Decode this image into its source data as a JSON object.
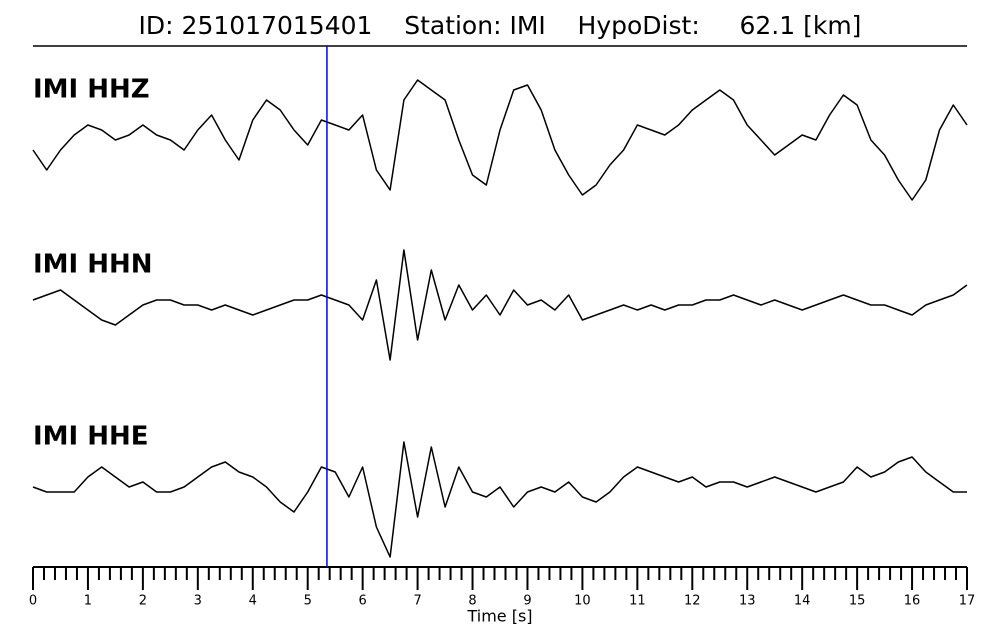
{
  "chart_data": {
    "type": "line",
    "title": "ID: 251017015401    Station: IMI    HypoDist:     62.1 [km]",
    "xlabel": "Time [s]",
    "x": [
      0,
      0.25,
      0.5,
      0.75,
      1,
      1.25,
      1.5,
      1.75,
      2,
      2.25,
      2.5,
      2.75,
      3,
      3.25,
      3.5,
      3.75,
      4,
      4.25,
      4.5,
      4.75,
      5,
      5.25,
      5.5,
      5.75,
      6,
      6.25,
      6.5,
      6.75,
      7,
      7.25,
      7.5,
      7.75,
      8,
      8.25,
      8.5,
      8.75,
      9,
      9.25,
      9.5,
      9.75,
      10,
      10.25,
      10.5,
      10.75,
      11,
      11.25,
      11.5,
      11.75,
      12,
      12.25,
      12.5,
      12.75,
      13,
      13.25,
      13.5,
      13.75,
      14,
      14.25,
      14.5,
      14.75,
      15,
      15.25,
      15.5,
      15.75,
      16,
      16.25,
      16.5,
      16.75,
      17
    ],
    "xlim": [
      0,
      17
    ],
    "xticks": [
      0,
      1,
      2,
      3,
      4,
      5,
      6,
      7,
      8,
      9,
      10,
      11,
      12,
      13,
      14,
      15,
      16,
      17
    ],
    "minor_ticks_per_major": 5,
    "ylim": [
      -80,
      80
    ],
    "label_color": "#4a9a00",
    "marker": {
      "x": 5.35,
      "color": "#0000ff"
    },
    "series": [
      {
        "name": "IMI HHZ",
        "color": "#000000",
        "values": [
          -10,
          -30,
          -10,
          5,
          15,
          10,
          0,
          5,
          15,
          5,
          0,
          -10,
          10,
          25,
          0,
          -20,
          20,
          40,
          30,
          10,
          -5,
          20,
          15,
          10,
          25,
          -30,
          -50,
          40,
          60,
          50,
          40,
          0,
          -35,
          -45,
          10,
          50,
          55,
          30,
          -10,
          -35,
          -55,
          -45,
          -25,
          -10,
          15,
          10,
          5,
          15,
          30,
          40,
          50,
          40,
          15,
          0,
          -15,
          -5,
          5,
          0,
          25,
          45,
          35,
          0,
          -15,
          -40,
          -60,
          -40,
          10,
          35,
          15
        ]
      },
      {
        "name": "IMI HHN",
        "color": "#000000",
        "values": [
          0,
          5,
          10,
          0,
          -10,
          -20,
          -25,
          -15,
          -5,
          0,
          0,
          -5,
          -5,
          -10,
          -5,
          -10,
          -15,
          -10,
          -5,
          0,
          0,
          5,
          0,
          -5,
          -20,
          20,
          -60,
          50,
          -40,
          30,
          -20,
          15,
          -10,
          5,
          -15,
          10,
          -5,
          0,
          -10,
          5,
          -20,
          -15,
          -10,
          -5,
          -10,
          -5,
          -10,
          -5,
          -5,
          0,
          0,
          5,
          0,
          -5,
          0,
          -5,
          -10,
          -5,
          0,
          5,
          0,
          -5,
          -5,
          -10,
          -15,
          -5,
          0,
          5,
          15
        ]
      },
      {
        "name": "IMI HHE",
        "color": "#000000",
        "values": [
          0,
          -5,
          -5,
          -5,
          10,
          20,
          10,
          0,
          5,
          -5,
          -5,
          0,
          10,
          20,
          25,
          15,
          10,
          0,
          -15,
          -25,
          -5,
          20,
          15,
          -10,
          20,
          -40,
          -70,
          45,
          -30,
          40,
          -20,
          20,
          -5,
          -10,
          0,
          -20,
          -5,
          0,
          -5,
          5,
          -10,
          -15,
          -5,
          10,
          20,
          15,
          10,
          5,
          10,
          0,
          5,
          5,
          0,
          5,
          10,
          5,
          0,
          -5,
          0,
          5,
          20,
          10,
          15,
          25,
          30,
          15,
          5,
          -5,
          -5
        ]
      }
    ]
  }
}
